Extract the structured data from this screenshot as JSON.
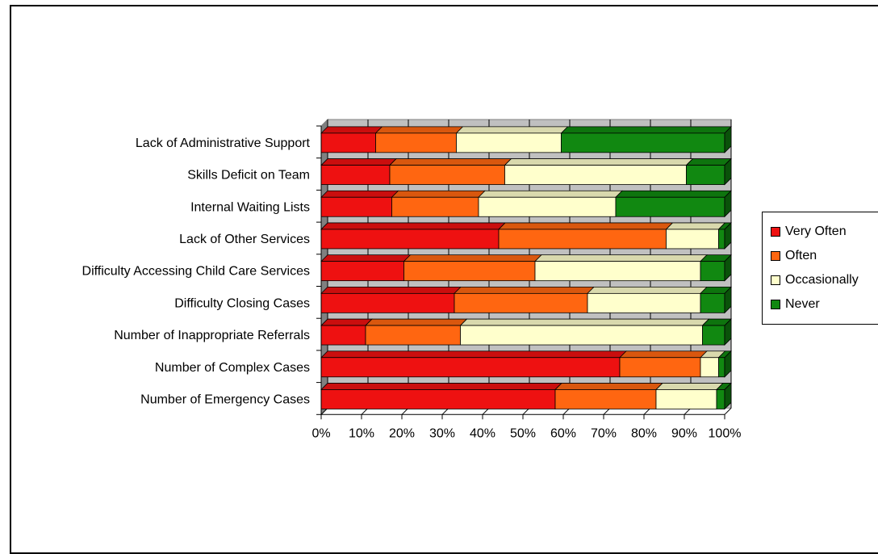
{
  "chart_data": {
    "type": "bar",
    "orientation": "horizontal",
    "stacked": "percent",
    "style": "3d",
    "categories": [
      "Lack of Administrative Support",
      "Skills Deficit on Team",
      "Internal Waiting Lists",
      "Lack of Other Services",
      "Difficulty Accessing Child Care Services",
      "Difficulty Closing Cases",
      "Number of Inappropriate Referrals",
      "Number of Complex Cases",
      "Number of Emergency Cases"
    ],
    "series": [
      {
        "name": "Very Often",
        "color": "#ee1111",
        "values": [
          13.5,
          17,
          17.5,
          44,
          20.5,
          33,
          11,
          74,
          58
        ]
      },
      {
        "name": "Often",
        "color": "#ff6611",
        "values": [
          20,
          28.5,
          21.5,
          41.5,
          32.5,
          33,
          23.5,
          20,
          25
        ]
      },
      {
        "name": "Occasionally",
        "color": "#ffffcc",
        "values": [
          26,
          45,
          34,
          13,
          41,
          28,
          60,
          4.5,
          15
        ]
      },
      {
        "name": "Never",
        "color": "#118811",
        "values": [
          40.5,
          9.5,
          27,
          1.5,
          6,
          6,
          5.5,
          1.5,
          2
        ]
      }
    ],
    "x_ticks": [
      "0%",
      "10%",
      "20%",
      "30%",
      "40%",
      "50%",
      "60%",
      "70%",
      "80%",
      "90%",
      "100%"
    ],
    "xlim": [
      0,
      100
    ],
    "grid": true,
    "legend_position": "right",
    "title": "",
    "xlabel": "",
    "ylabel": ""
  }
}
